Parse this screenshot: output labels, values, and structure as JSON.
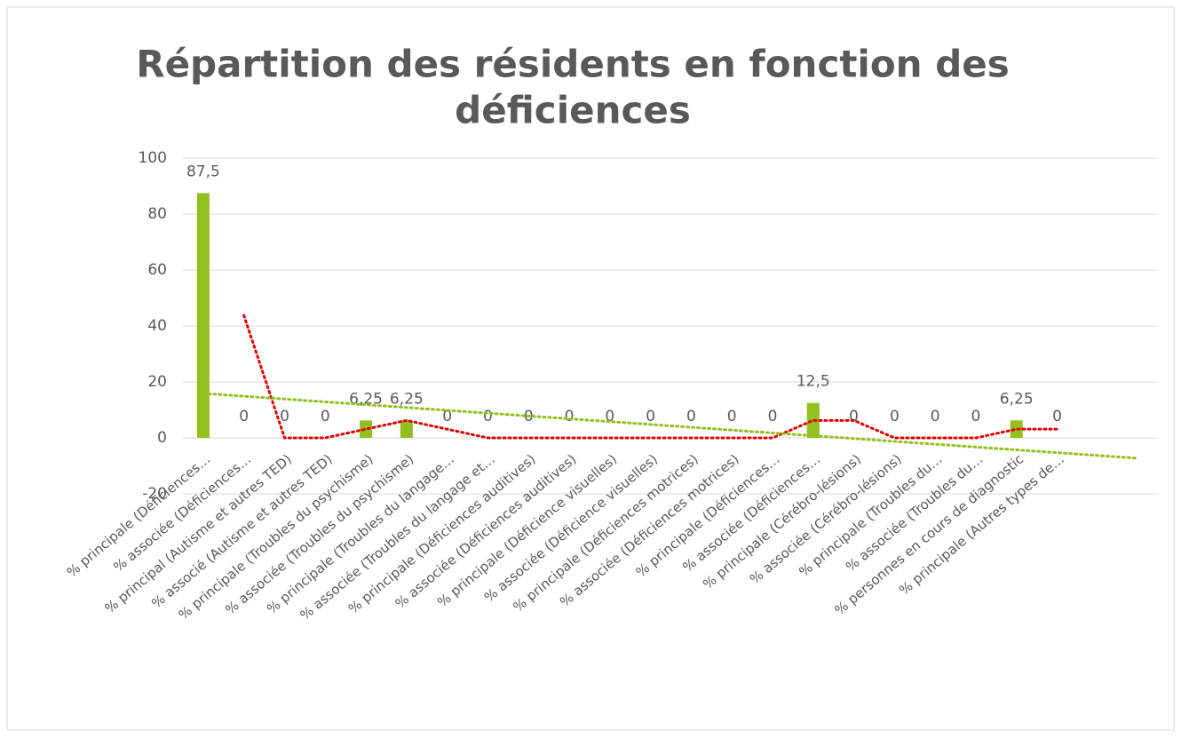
{
  "chart_data": {
    "type": "bar",
    "title": "Répartition des résidents en fonction des",
    "title_line2": "déficiences",
    "categories": [
      "% principale (Déficiences…",
      "% associée (Déficiences…",
      "% principal (Autisme et autres TED)",
      "% associé (Autisme et autres TED)",
      "% principale (Troubles du psychisme)",
      "% associée (Troubles du psychisme)",
      "% principale (Troubles du langage…",
      "% associée (Troubles du langage et…",
      "% principale (Déficiences auditives)",
      "% associée (Déficiences auditives)",
      "% principale (Déficience visuelles)",
      "% associée (Déficience visuelles)",
      "% principale (Déficiences motrices)",
      "% associée (Déficiences motrices)",
      "% principale (Déficiences…",
      "% associée (Déficiences…",
      "% principale (Cérébro-lésions)",
      "% associée (Cérébro-lésions)",
      "% principale (Troubles du…",
      "% associée (Troubles du…",
      "% personnes en cours de diagnostic",
      "% principale (Autres types de…",
      null,
      null
    ],
    "values": [
      87.5,
      0,
      0,
      0,
      6.25,
      6.25,
      0,
      0,
      0,
      0,
      0,
      0,
      0,
      0,
      0,
      12.5,
      0,
      0,
      0,
      0,
      6.25,
      0,
      null,
      null
    ],
    "value_labels": [
      "87,5",
      "0",
      "0",
      "0",
      "6,25",
      "6,25",
      "0",
      "0",
      "0",
      "0",
      "0",
      "0",
      "0",
      "0",
      "0",
      "12,5",
      "0",
      "0",
      "0",
      "0",
      "6,25",
      "0",
      null,
      null
    ],
    "color": "#92c01f",
    "moving_average": {
      "color": "#e00000",
      "values": [
        null,
        43.75,
        0,
        0,
        3.125,
        6.25,
        3.125,
        0,
        0,
        0,
        0,
        0,
        0,
        0,
        0,
        6.25,
        6.25,
        0,
        0,
        0,
        3.125,
        3.125,
        null,
        null
      ]
    },
    "trendline": {
      "color": "#92c01f",
      "x": [
        0,
        23
      ],
      "values": [
        15.9,
        -7.3
      ]
    },
    "ylim": [
      -20,
      100
    ],
    "yticks": [
      -20,
      0,
      20,
      40,
      60,
      80,
      100
    ],
    "grid": true
  }
}
